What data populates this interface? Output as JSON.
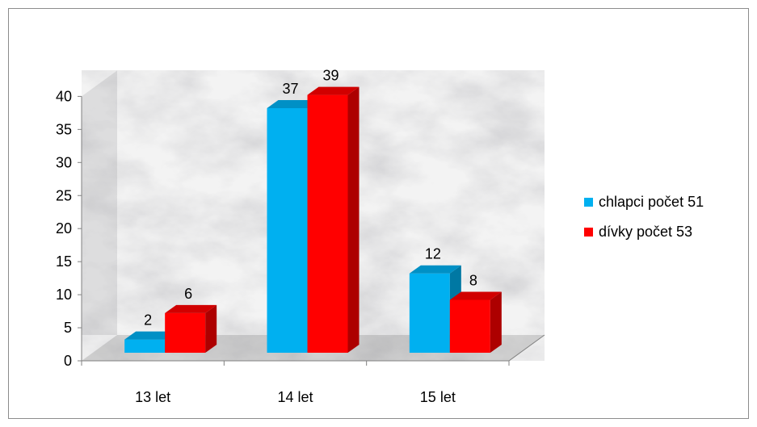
{
  "chart_data": {
    "type": "bar",
    "categories": [
      "13 let",
      "14 let",
      "15 let"
    ],
    "series": [
      {
        "name": "chlapci počet 51",
        "values": [
          2,
          37,
          12
        ],
        "color": "#00B0F0"
      },
      {
        "name": "dívky počet 53",
        "values": [
          6,
          39,
          8
        ],
        "color": "#FF0000"
      }
    ],
    "data_labels": [
      [
        "2",
        "37",
        "12"
      ],
      [
        "6",
        "39",
        "8"
      ]
    ],
    "ylim": [
      0,
      40
    ],
    "yticks": [
      "0",
      "5",
      "10",
      "15",
      "20",
      "25",
      "30",
      "35",
      "40"
    ],
    "legend_position": "right",
    "style": "3d-clustered-column",
    "wall": "marble"
  }
}
